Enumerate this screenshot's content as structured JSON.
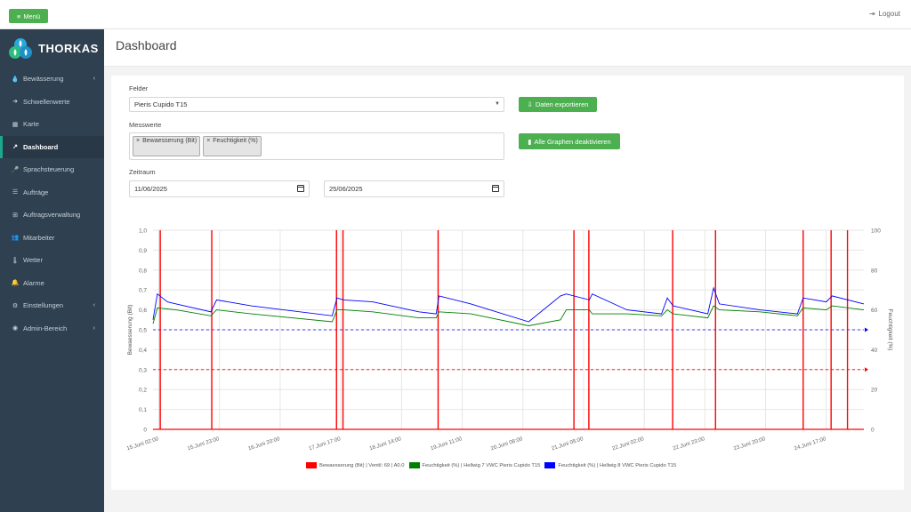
{
  "topbar": {
    "menu_label": "Menü",
    "logout_label": "Logout"
  },
  "brand": {
    "name": "THORKAS"
  },
  "sidebar": {
    "items": [
      {
        "label": "Bewässerung",
        "icon": "drop-icon",
        "glyph": "💧",
        "has_children": true,
        "active": false
      },
      {
        "label": "Schwellenwerte",
        "icon": "arrow-icon",
        "glyph": "➜",
        "has_children": false,
        "active": false
      },
      {
        "label": "Karte",
        "icon": "map-icon",
        "glyph": "▦",
        "has_children": false,
        "active": false
      },
      {
        "label": "Dashboard",
        "icon": "line-chart-icon",
        "glyph": "↗",
        "has_children": false,
        "active": true
      },
      {
        "label": "Sprachsteuerung",
        "icon": "microphone-icon",
        "glyph": "🎤",
        "has_children": false,
        "active": false
      },
      {
        "label": "Aufträge",
        "icon": "list-icon",
        "glyph": "☰",
        "has_children": false,
        "active": false
      },
      {
        "label": "Auftragsverwaltung",
        "icon": "plus-square-icon",
        "glyph": "⊞",
        "has_children": false,
        "active": false
      },
      {
        "label": "Mitarbeiter",
        "icon": "users-icon",
        "glyph": "👥",
        "has_children": false,
        "active": false
      },
      {
        "label": "Wetter",
        "icon": "thermometer-icon",
        "glyph": "🌡",
        "has_children": false,
        "active": false
      },
      {
        "label": "Alarme",
        "icon": "bell-icon",
        "glyph": "🔔",
        "has_children": false,
        "active": false
      },
      {
        "label": "Einstellungen",
        "icon": "gears-icon",
        "glyph": "⚙",
        "has_children": true,
        "active": false
      },
      {
        "label": "Admin-Bereich",
        "icon": "dashboard-icon",
        "glyph": "◉",
        "has_children": true,
        "active": false
      }
    ]
  },
  "page": {
    "title": "Dashboard"
  },
  "form": {
    "felder_label": "Felder",
    "felder_value": "Pieris Cupido T15",
    "messwerte_label": "Messwerte",
    "messwerte_tags": [
      "Bewaesserung (Bit)",
      "Feuchtigkeit (%)"
    ],
    "zeitraum_label": "Zeitraum",
    "date_from": "11/06/2025",
    "date_to": "25/06/2025",
    "export_label": "Daten exportieren",
    "deactivate_label": "Alle Graphen deaktivieren"
  },
  "colors": {
    "accent": "#4caf50",
    "sidebar": "#2f4050",
    "active_border": "#19aa8d",
    "irrigation": "#ff0000",
    "hellwig7": "#008000",
    "hellwig8": "#0000ff"
  },
  "chart_data": {
    "type": "line",
    "x_tick_labels": [
      "15.Juni 02:00",
      "15.Juni 23:00",
      "16.Juni 20:00",
      "17.Juni 17:00",
      "18.Juni 14:00",
      "19.Juni 11:00",
      "20.Juni 08:00",
      "21.Juni 05:00",
      "22.Juni 02:00",
      "22.Juni 23:00",
      "23.Juni 20:00",
      "24.Juni 17:00"
    ],
    "x_range": [
      "2025-06-15 00:00",
      "2025-06-25 06:00"
    ],
    "left_axis": {
      "label": "Bewaesserung (Bit)",
      "range": [
        0,
        1
      ],
      "ticks": [
        "0",
        "0,1",
        "0,2",
        "0,3",
        "0,4",
        "0,5",
        "0,6",
        "0,7",
        "0,8",
        "0,9",
        "1,0"
      ]
    },
    "right_axis": {
      "label": "Feuchtigkeit (%)",
      "range": [
        0,
        100
      ],
      "ticks": [
        "0",
        "20",
        "40",
        "60",
        "80",
        "100"
      ]
    },
    "grid": true,
    "legend_position": "bottom",
    "series": [
      {
        "name": "Bewaesserung (Bit) | Ventil: 69 | A0.0",
        "axis": "left",
        "color": "#ff0000",
        "irrigation_on_times": [
          "2025-06-15 02:30",
          "2025-06-15 20:20",
          "2025-06-17 15:30",
          "2025-06-17 17:45",
          "2025-06-19 02:40",
          "2025-06-21 01:40",
          "2025-06-21 06:50",
          "2025-06-22 11:50",
          "2025-06-23 02:40",
          "2025-06-24 09:00",
          "2025-06-24 18:40",
          "2025-06-25 00:20"
        ],
        "threshold_line": 0.3
      },
      {
        "name": "Feuchtigkeit (%) | Hellwig 7 VWC Pieris Cupido T15",
        "axis": "right",
        "color": "#008000",
        "x": [
          "2025-06-15 00:00",
          "2025-06-15 01:30",
          "2025-06-15 08:00",
          "2025-06-15 20:00",
          "2025-06-15 22:00",
          "2025-06-16 10:00",
          "2025-06-17 14:00",
          "2025-06-17 15:40",
          "2025-06-17 18:00",
          "2025-06-18 04:00",
          "2025-06-18 20:00",
          "2025-06-19 02:00",
          "2025-06-19 03:00",
          "2025-06-19 14:00",
          "2025-06-20 10:00",
          "2025-06-20 21:00",
          "2025-06-20 23:00",
          "2025-06-21 07:00",
          "2025-06-21 08:00",
          "2025-06-21 20:00",
          "2025-06-22 08:00",
          "2025-06-22 10:00",
          "2025-06-22 12:00",
          "2025-06-23 00:00",
          "2025-06-23 02:00",
          "2025-06-23 04:00",
          "2025-06-23 18:00",
          "2025-06-24 07:00",
          "2025-06-24 09:00",
          "2025-06-24 17:00",
          "2025-06-24 19:00",
          "2025-06-25 06:00"
        ],
        "y": [
          53,
          61,
          60,
          57,
          60,
          58,
          54,
          60,
          60,
          59,
          56,
          56,
          59,
          58,
          52,
          55,
          60,
          60,
          58,
          58,
          57,
          60,
          58,
          56,
          62,
          60,
          59,
          57,
          61,
          60,
          62,
          60
        ],
        "threshold_line": 50
      },
      {
        "name": "Feuchtigkeit (%) | Hellwig 8 VWC Pieris Cupido T15",
        "axis": "right",
        "color": "#0000ff",
        "x": [
          "2025-06-15 00:00",
          "2025-06-15 01:30",
          "2025-06-15 05:00",
          "2025-06-15 08:00",
          "2025-06-15 20:00",
          "2025-06-15 22:00",
          "2025-06-16 10:00",
          "2025-06-17 14:00",
          "2025-06-17 15:40",
          "2025-06-17 18:00",
          "2025-06-18 04:00",
          "2025-06-18 20:00",
          "2025-06-19 02:00",
          "2025-06-19 03:00",
          "2025-06-19 14:00",
          "2025-06-20 10:00",
          "2025-06-20 21:00",
          "2025-06-20 23:00",
          "2025-06-21 07:00",
          "2025-06-21 08:00",
          "2025-06-21 20:00",
          "2025-06-22 08:00",
          "2025-06-22 10:00",
          "2025-06-22 12:00",
          "2025-06-23 00:00",
          "2025-06-23 02:00",
          "2025-06-23 04:00",
          "2025-06-23 18:00",
          "2025-06-24 07:00",
          "2025-06-24 09:00",
          "2025-06-24 17:00",
          "2025-06-24 19:00",
          "2025-06-25 06:00"
        ],
        "y": [
          55,
          68,
          64,
          63,
          59,
          65,
          62,
          57,
          66,
          65,
          64,
          59,
          58,
          67,
          63,
          54,
          67,
          68,
          65,
          68,
          60,
          58,
          66,
          62,
          58,
          71,
          63,
          60,
          58,
          66,
          64,
          67,
          63
        ],
        "threshold_line": 50
      }
    ]
  }
}
